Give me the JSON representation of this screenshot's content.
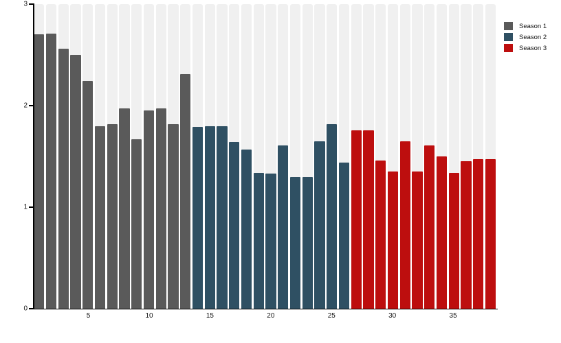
{
  "chart_data": {
    "type": "bar",
    "title": "",
    "xlabel": "",
    "ylabel": "",
    "ylim": [
      0,
      3
    ],
    "yticks": [
      0,
      1,
      2,
      3
    ],
    "xticks": [
      5,
      10,
      15,
      20,
      25,
      30,
      35
    ],
    "x_range": [
      1,
      38
    ],
    "grid": false,
    "legend_position": "top-right",
    "background_band_color": "#f0f0f0",
    "series": [
      {
        "name": "Season 1",
        "color": "#5a5a5a",
        "episodes_start": 1,
        "values": [
          2.7,
          2.71,
          2.56,
          2.5,
          2.24,
          1.8,
          1.82,
          1.97,
          1.67,
          1.95,
          1.97,
          1.82,
          2.31
        ]
      },
      {
        "name": "Season 2",
        "color": "#2f5063",
        "episodes_start": 14,
        "values": [
          1.79,
          1.8,
          1.8,
          1.64,
          1.57,
          1.34,
          1.33,
          1.61,
          1.3,
          1.3,
          1.65,
          1.82,
          1.44
        ]
      },
      {
        "name": "Season 3",
        "color": "#bd0e0e",
        "episodes_start": 27,
        "values": [
          1.76,
          1.76,
          1.46,
          1.35,
          1.65,
          1.35,
          1.61,
          1.5,
          1.34,
          1.45,
          1.47,
          1.47
        ]
      }
    ]
  },
  "legend": {
    "items": [
      {
        "label": "Season 1",
        "color": "#5a5a5a"
      },
      {
        "label": "Season 2",
        "color": "#2f5063"
      },
      {
        "label": "Season 3",
        "color": "#bd0e0e"
      }
    ]
  },
  "y_axis": {
    "tick_labels": [
      "0",
      "1",
      "2",
      "3"
    ]
  },
  "x_axis": {
    "tick_labels": [
      "5",
      "10",
      "15",
      "20",
      "25",
      "30",
      "35"
    ]
  }
}
